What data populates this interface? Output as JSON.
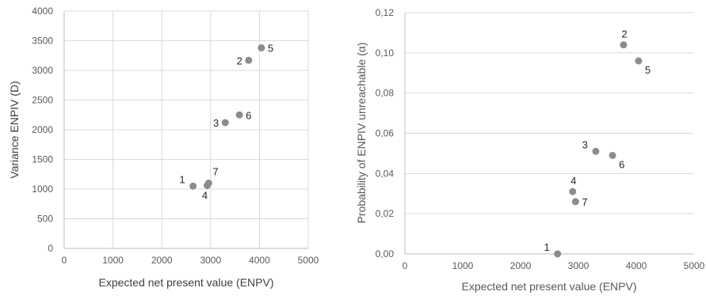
{
  "chart_data": [
    {
      "type": "scatter",
      "title": "",
      "xlabel": "Expected net present value  (ENPV)",
      "ylabel": "Variance ENPIV (D)",
      "xlim": [
        0,
        5000
      ],
      "ylim": [
        0,
        4000
      ],
      "x_ticks": [
        "0",
        "1000",
        "2000",
        "3000",
        "4000",
        "5000"
      ],
      "y_ticks": [
        "0",
        "500",
        "1000",
        "1500",
        "2000",
        "2500",
        "3000",
        "3500",
        "4000"
      ],
      "grid": "vertical",
      "marker_color": "#8c8c8c",
      "points": [
        {
          "label": "1",
          "x": 2640,
          "y": 1050,
          "label_pos": "upper-left"
        },
        {
          "label": "7",
          "x": 2960,
          "y": 1100,
          "label_pos": "upper-right"
        },
        {
          "label": "4",
          "x": 2930,
          "y": 1060,
          "label_pos": "below-left"
        },
        {
          "label": "3",
          "x": 3300,
          "y": 2120,
          "label_pos": "left"
        },
        {
          "label": "6",
          "x": 3590,
          "y": 2250,
          "label_pos": "right"
        },
        {
          "label": "2",
          "x": 3780,
          "y": 3170,
          "label_pos": "left"
        },
        {
          "label": "5",
          "x": 4040,
          "y": 3380,
          "label_pos": "right"
        }
      ]
    },
    {
      "type": "scatter",
      "title": "",
      "xlabel": "Expected net present value  (ENPV)",
      "ylabel": "Probability of  ENPIV unreachable  (α)",
      "xlim": [
        0,
        5000
      ],
      "ylim": [
        0,
        0.12
      ],
      "x_ticks": [
        "0",
        "1000",
        "2000",
        "3000",
        "4000",
        "5000"
      ],
      "y_ticks": [
        "0,00",
        "0,02",
        "0,04",
        "0,06",
        "0,08",
        "0,10",
        "0,12"
      ],
      "grid": "horizontal",
      "marker_color": "#8c8c8c",
      "points": [
        {
          "label": "1",
          "x": 2640,
          "y": 0.0,
          "label_pos": "upper-left"
        },
        {
          "label": "4",
          "x": 2900,
          "y": 0.031,
          "label_pos": "above"
        },
        {
          "label": "7",
          "x": 2950,
          "y": 0.026,
          "label_pos": "right"
        },
        {
          "label": "3",
          "x": 3300,
          "y": 0.051,
          "label_pos": "upper-left"
        },
        {
          "label": "6",
          "x": 3590,
          "y": 0.049,
          "label_pos": "lower-right"
        },
        {
          "label": "2",
          "x": 3780,
          "y": 0.104,
          "label_pos": "above"
        },
        {
          "label": "5",
          "x": 4040,
          "y": 0.096,
          "label_pos": "lower-right"
        }
      ]
    }
  ]
}
